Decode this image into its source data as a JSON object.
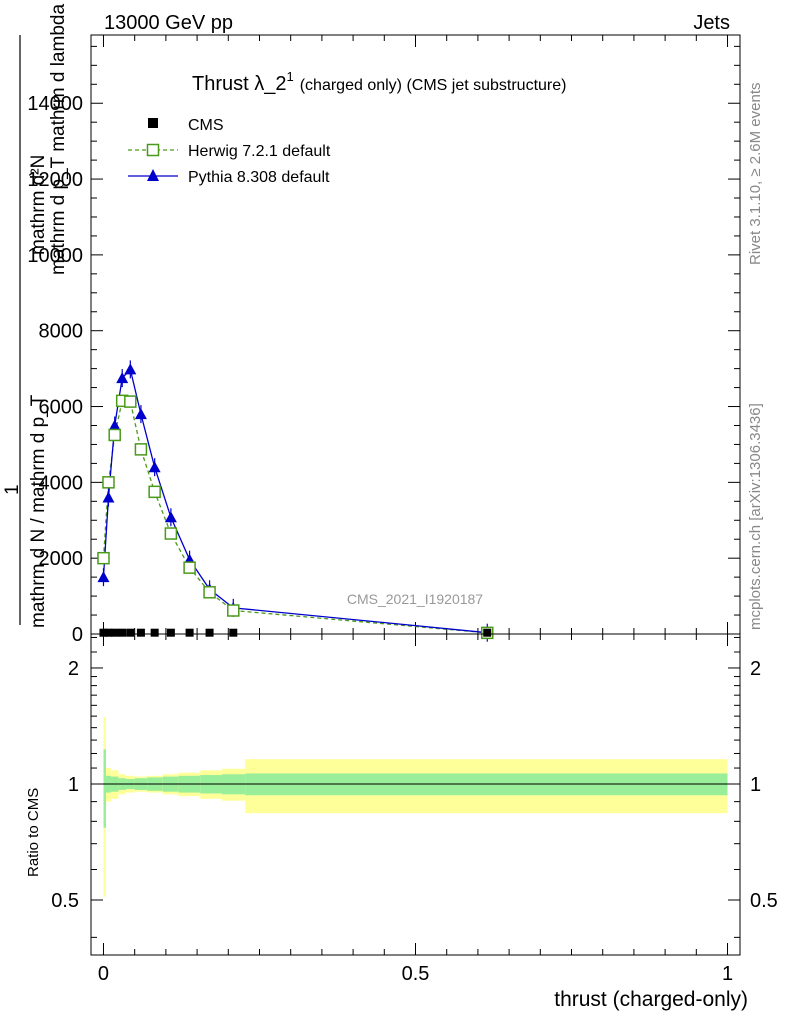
{
  "header": {
    "left": "13000 GeV pp",
    "right": "Jets"
  },
  "side_labels": {
    "rivet": "Rivet 3.1.10, ≥ 2.6M events",
    "mcplots": "mcplots.cern.ch [arXiv:1306.3436]"
  },
  "watermark": "CMS_2021_I1920187",
  "chart_data": [
    {
      "type": "line",
      "panel": "main",
      "title": "Thrust λ_2",
      "title_sup": "1",
      "subtitle": "(charged only) (CMS jet substructure)",
      "ylabel_numerator": "mathrm d²N",
      "ylabel_numerator_sub": "mathrm d p_T mathrm d lambda",
      "ylabel_factor": "1",
      "ylabel_denominator": "mathrm d N / mathrm d p_T",
      "yticks": [
        0,
        2000,
        4000,
        6000,
        8000,
        10000,
        12000,
        14000
      ],
      "ytick_labels": [
        "0",
        "2000",
        "4000",
        "6000",
        "8000",
        "10000",
        "12000",
        "14000"
      ],
      "xlim": [
        -0.02,
        1.02
      ],
      "ylim": [
        0,
        15800
      ],
      "legend_position": "top-left",
      "series": [
        {
          "name": "CMS",
          "color": "#000000",
          "marker": "filled-square",
          "x": [
            0.0,
            0.008,
            0.018,
            0.03,
            0.043,
            0.06,
            0.082,
            0.108,
            0.138,
            0.17,
            0.208,
            0.615
          ],
          "y": [
            8,
            8,
            8,
            8,
            8,
            8,
            8,
            8,
            8,
            8,
            8,
            8
          ]
        },
        {
          "name": "Herwig 7.2.1 default",
          "color": "#4a9a1a",
          "marker": "open-square",
          "line": "dashed",
          "x": [
            0.0,
            0.008,
            0.018,
            0.03,
            0.043,
            0.06,
            0.082,
            0.108,
            0.138,
            0.17,
            0.208,
            0.615
          ],
          "y": [
            2000,
            4000,
            5250,
            6150,
            6130,
            4870,
            3750,
            2650,
            1750,
            1100,
            620,
            30
          ]
        },
        {
          "name": "Pythia 8.308 default",
          "color": "#0000cc",
          "marker": "filled-triangle",
          "line": "solid",
          "x": [
            0.0,
            0.008,
            0.018,
            0.03,
            0.043,
            0.06,
            0.082,
            0.108,
            0.138,
            0.17,
            0.208,
            0.615
          ],
          "y": [
            1500,
            3600,
            5500,
            6750,
            6980,
            5800,
            4400,
            3080,
            1960,
            1180,
            690,
            35
          ]
        }
      ]
    },
    {
      "type": "area",
      "panel": "ratio",
      "ylabel": "Ratio to CMS",
      "xlabel": "thrust (charged-only)",
      "xticks": [
        0,
        0.5,
        1
      ],
      "xtick_labels": [
        "0",
        "0.5",
        "1"
      ],
      "yticks": [
        0.5,
        1,
        2
      ],
      "ytick_labels": [
        "0.5",
        "1",
        "2"
      ],
      "ylim": [
        0.36,
        2.45
      ],
      "y_scale": "log",
      "bands": {
        "bin_edges": [
          0.0,
          0.004,
          0.012,
          0.024,
          0.036,
          0.05,
          0.07,
          0.095,
          0.12,
          0.155,
          0.19,
          0.227,
          1.0
        ],
        "stat_color": "#99ee99",
        "total_color": "#ffff99",
        "stat_half_width": [
          0.23,
          0.05,
          0.045,
          0.035,
          0.03,
          0.035,
          0.04,
          0.045,
          0.05,
          0.055,
          0.06,
          0.065
        ],
        "total_half_width": [
          0.49,
          0.1,
          0.085,
          0.06,
          0.05,
          0.045,
          0.05,
          0.06,
          0.07,
          0.085,
          0.095,
          0.16
        ]
      }
    }
  ]
}
